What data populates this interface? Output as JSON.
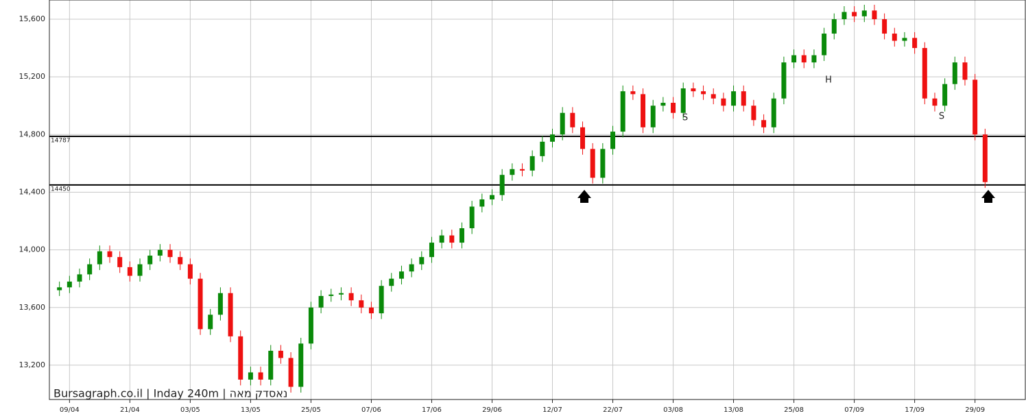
{
  "chart_data": {
    "type": "candlestick",
    "watermark": "Bursagraph.co.il | Inday 240m | נאסדק מאה",
    "up_color": "#0a8a0a",
    "down_color": "#ee1111",
    "xlim": [
      -1,
      96
    ],
    "xticks": [
      {
        "value": 1,
        "label": "09/04"
      },
      {
        "value": 7,
        "label": "21/04"
      },
      {
        "value": 13,
        "label": "03/05"
      },
      {
        "value": 19,
        "label": "13/05"
      },
      {
        "value": 25,
        "label": "25/05"
      },
      {
        "value": 31,
        "label": "07/06"
      },
      {
        "value": 37,
        "label": "17/06"
      },
      {
        "value": 43,
        "label": "29/06"
      },
      {
        "value": 49,
        "label": "12/07"
      },
      {
        "value": 55,
        "label": "22/07"
      },
      {
        "value": 61,
        "label": "03/08"
      },
      {
        "value": 67,
        "label": "13/08"
      },
      {
        "value": 73,
        "label": "25/08"
      },
      {
        "value": 79,
        "label": "07/09"
      },
      {
        "value": 85,
        "label": "17/09"
      },
      {
        "value": 91,
        "label": "29/09"
      }
    ],
    "ylim": [
      12962,
      15733
    ],
    "yticks": [
      {
        "value": 13200,
        "label": "13,200"
      },
      {
        "value": 13600,
        "label": "13,600"
      },
      {
        "value": 14000,
        "label": "14,000"
      },
      {
        "value": 14400,
        "label": "14,400"
      },
      {
        "value": 14800,
        "label": "14,800"
      },
      {
        "value": 15200,
        "label": "15,200"
      },
      {
        "value": 15600,
        "label": "15,600"
      }
    ],
    "grid": true,
    "levels": [
      14787,
      14450
    ],
    "annotations": [
      "S",
      "H",
      "S"
    ],
    "open": [
      13720,
      13740,
      13780,
      13830,
      13900,
      13990,
      13950,
      13880,
      13820,
      13900,
      13960,
      14000,
      13950,
      13900,
      13800,
      13450,
      13550,
      13700,
      13400,
      13100,
      13150,
      13100,
      13300,
      13250,
      13050,
      13350,
      13600,
      13680,
      13690,
      13700,
      13650,
      13600,
      13560,
      13750,
      13800,
      13850,
      13900,
      13950,
      14050,
      14100,
      14050,
      14150,
      14300,
      14350,
      14380,
      14520,
      14560,
      14550,
      14650,
      14750,
      14800,
      14950,
      14850,
      14700,
      14500,
      14700,
      14820,
      15100,
      15080,
      14850,
      15000,
      15020,
      14950,
      15120,
      15100,
      15080,
      15050,
      15000,
      15100,
      15000,
      14900,
      14850,
      15050,
      15300,
      15350,
      15300,
      15350,
      15500,
      15600,
      15650,
      15620,
      15660,
      15600,
      15500,
      15450,
      15470,
      15400,
      15050,
      15000,
      15150,
      15300,
      15180,
      14800
    ],
    "high": [
      13780,
      13820,
      13870,
      13940,
      14030,
      14030,
      13990,
      13920,
      13940,
      14000,
      14040,
      14040,
      13990,
      13940,
      13840,
      13590,
      13740,
      13740,
      13440,
      13190,
      13190,
      13340,
      13340,
      13290,
      13390,
      13640,
      13720,
      13730,
      13740,
      13740,
      13690,
      13640,
      13790,
      13840,
      13890,
      13940,
      13990,
      14090,
      14140,
      14140,
      14190,
      14340,
      14390,
      14420,
      14560,
      14600,
      14600,
      14690,
      14790,
      14840,
      14990,
      14990,
      14890,
      14740,
      14740,
      14860,
      15140,
      15140,
      15120,
      15040,
      15060,
      15060,
      15160,
      15160,
      15140,
      15120,
      15090,
      15140,
      15140,
      15040,
      14940,
      15090,
      15340,
      15390,
      15390,
      15390,
      15540,
      15640,
      15690,
      15690,
      15700,
      15700,
      15640,
      15540,
      15510,
      15510,
      15440,
      15090,
      15190,
      15340,
      15340,
      15220,
      14840
    ],
    "low": [
      13680,
      13700,
      13740,
      13790,
      13860,
      13910,
      13840,
      13780,
      13780,
      13860,
      13920,
      13910,
      13860,
      13760,
      13410,
      13410,
      13510,
      13360,
      13060,
      13060,
      13060,
      13060,
      13210,
      13010,
      13010,
      13310,
      13560,
      13640,
      13650,
      13610,
      13560,
      13520,
      13520,
      13710,
      13760,
      13810,
      13860,
      13910,
      14010,
      14010,
      14010,
      14110,
      14260,
      14310,
      14340,
      14480,
      14510,
      14510,
      14610,
      14710,
      14760,
      14810,
      14660,
      14460,
      14460,
      14660,
      14780,
      15040,
      14810,
      14810,
      14960,
      14910,
      14910,
      15060,
      15040,
      15010,
      14960,
      14960,
      14960,
      14860,
      14810,
      14810,
      15010,
      15260,
      15260,
      15260,
      15310,
      15460,
      15560,
      15580,
      15580,
      15560,
      15460,
      15410,
      15410,
      15360,
      15010,
      14960,
      14960,
      15110,
      15140,
      14760,
      14430
    ],
    "close": [
      13740,
      13780,
      13830,
      13900,
      13990,
      13950,
      13880,
      13820,
      13900,
      13960,
      14000,
      13950,
      13900,
      13800,
      13450,
      13550,
      13700,
      13400,
      13100,
      13150,
      13100,
      13300,
      13250,
      13050,
      13350,
      13600,
      13680,
      13690,
      13700,
      13650,
      13600,
      13560,
      13750,
      13800,
      13850,
      13900,
      13950,
      14050,
      14100,
      14050,
      14150,
      14300,
      14350,
      14380,
      14520,
      14560,
      14550,
      14650,
      14750,
      14800,
      14950,
      14850,
      14700,
      14500,
      14700,
      14820,
      15100,
      15080,
      14850,
      15000,
      15020,
      14950,
      15120,
      15100,
      15080,
      15050,
      15000,
      15100,
      15000,
      14900,
      14850,
      15050,
      15300,
      15350,
      15300,
      15350,
      15500,
      15600,
      15650,
      15620,
      15660,
      15600,
      15500,
      15450,
      15470,
      15400,
      15050,
      15000,
      15150,
      15300,
      15180,
      14800,
      14470
    ]
  }
}
